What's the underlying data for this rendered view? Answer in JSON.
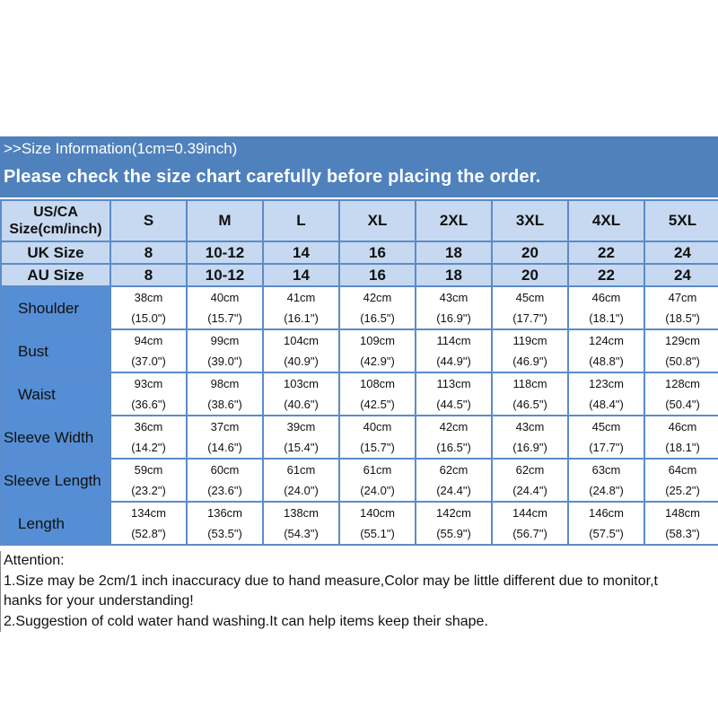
{
  "banner": {
    "line1": ">>Size Information(1cm=0.39inch)",
    "line2": "Please check the size chart carefully before placing the order."
  },
  "colors": {
    "banner": "#4f81bd",
    "header_cells": "#c6d9f0",
    "label_cells": "#558ed5",
    "grid": "#5b8bc9"
  },
  "table": {
    "header_rows": [
      {
        "label": "US/CA Size(cm/inch)",
        "values": [
          "S",
          "M",
          "L",
          "XL",
          "2XL",
          "3XL",
          "4XL",
          "5XL"
        ]
      },
      {
        "label": "UK Size",
        "values": [
          "8",
          "10-12",
          "14",
          "16",
          "18",
          "20",
          "22",
          "24"
        ]
      },
      {
        "label": "AU Size",
        "values": [
          "8",
          "10-12",
          "14",
          "16",
          "18",
          "20",
          "22",
          "24"
        ]
      }
    ],
    "rows": [
      {
        "label": "Shoulder",
        "cm": [
          "38cm",
          "40cm",
          "41cm",
          "42cm",
          "43cm",
          "45cm",
          "46cm",
          "47cm"
        ],
        "inch": [
          "(15.0\")",
          "(15.7\")",
          "(16.1\")",
          "(16.5\")",
          "(16.9\")",
          "(17.7\")",
          "(18.1\")",
          "(18.5\")"
        ]
      },
      {
        "label": "Bust",
        "cm": [
          "94cm",
          "99cm",
          "104cm",
          "109cm",
          "114cm",
          "119cm",
          "124cm",
          "129cm"
        ],
        "inch": [
          "(37.0\")",
          "(39.0\")",
          "(40.9\")",
          "(42.9\")",
          "(44.9\")",
          "(46.9\")",
          "(48.8\")",
          "(50.8\")"
        ]
      },
      {
        "label": "Waist",
        "cm": [
          "93cm",
          "98cm",
          "103cm",
          "108cm",
          "113cm",
          "118cm",
          "123cm",
          "128cm"
        ],
        "inch": [
          "(36.6\")",
          "(38.6\")",
          "(40.6\")",
          "(42.5\")",
          "(44.5\")",
          "(46.5\")",
          "(48.4\")",
          "(50.4\")"
        ]
      },
      {
        "label": "Sleeve Width",
        "cm": [
          "36cm",
          "37cm",
          "39cm",
          "40cm",
          "42cm",
          "43cm",
          "45cm",
          "46cm"
        ],
        "inch": [
          "(14.2\")",
          "(14.6\")",
          "(15.4\")",
          "(15.7\")",
          "(16.5\")",
          "(16.9\")",
          "(17.7\")",
          "(18.1\")"
        ]
      },
      {
        "label": "Sleeve Length",
        "cm": [
          "59cm",
          "60cm",
          "61cm",
          "61cm",
          "62cm",
          "62cm",
          "63cm",
          "64cm"
        ],
        "inch": [
          "(23.2\")",
          "(23.6\")",
          "(24.0\")",
          "(24.0\")",
          "(24.4\")",
          "(24.4\")",
          "(24.8\")",
          "(25.2\")"
        ]
      },
      {
        "label": "Length",
        "cm": [
          "134cm",
          "136cm",
          "138cm",
          "140cm",
          "142cm",
          "144cm",
          "146cm",
          "148cm"
        ],
        "inch": [
          "(52.8\")",
          "(53.5\")",
          "(54.3\")",
          "(55.1\")",
          "(55.9\")",
          "(56.7\")",
          "(57.5\")",
          "(58.3\")"
        ]
      }
    ]
  },
  "attention": {
    "title": "Attention:",
    "line1a": "1.Size may be 2cm/1 inch inaccuracy due to hand measure,Color may be little different due to monitor,t",
    "line1b": "hanks for your understanding!",
    "line2": "2.Suggestion of cold water hand washing.It can help items keep their shape."
  }
}
